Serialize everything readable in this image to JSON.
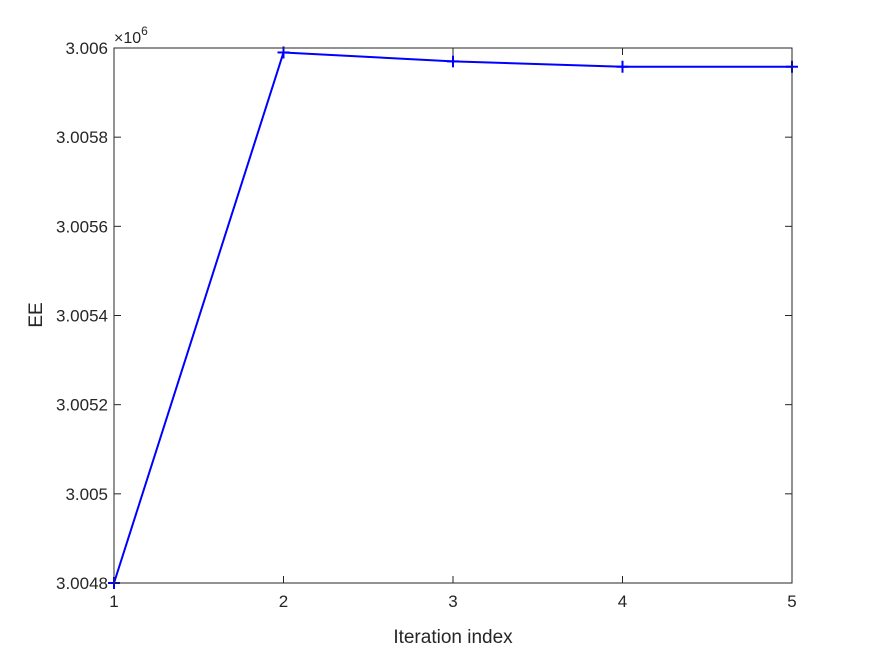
{
  "chart_data": {
    "type": "line",
    "x": [
      1,
      2,
      3,
      4,
      5
    ],
    "series": [
      {
        "values": [
          3004800,
          3005990,
          3005970,
          3005958,
          3005958
        ],
        "color": "#0000ff",
        "marker": "plus"
      }
    ],
    "xlabel": "Iteration index",
    "ylabel": "EE",
    "xlim": [
      1,
      5
    ],
    "ylim": [
      3004800,
      3006000
    ],
    "xticks": [
      1,
      2,
      3,
      4,
      5
    ],
    "xtick_labels": [
      "1",
      "2",
      "3",
      "4",
      "5"
    ],
    "yticks": [
      3004800,
      3005000,
      3005200,
      3005400,
      3005600,
      3005800,
      3006000
    ],
    "ytick_labels": [
      "3.0048",
      "3.005",
      "3.0052",
      "3.0054",
      "3.0056",
      "3.0058",
      "3.006"
    ],
    "y_exponent_base": "×10",
    "y_exponent_power": "6",
    "grid": false,
    "legend": "none"
  }
}
